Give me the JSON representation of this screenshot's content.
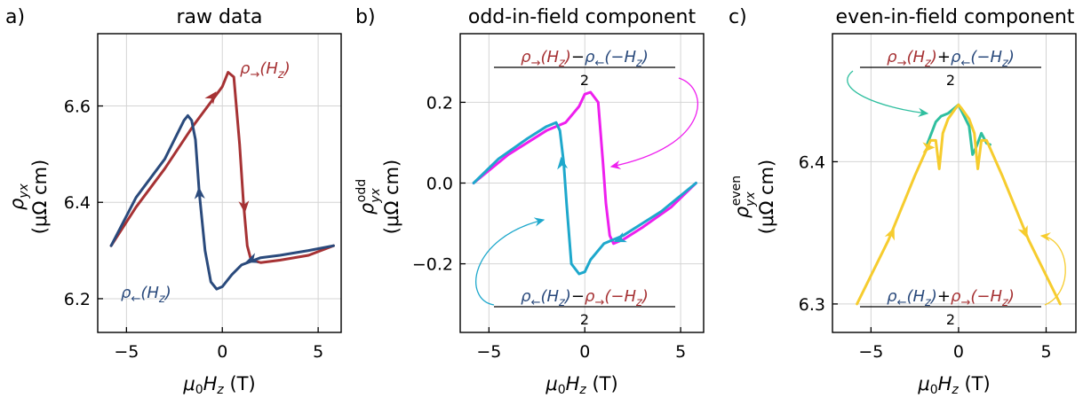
{
  "colors": {
    "red": "#a63234",
    "blue": "#2a4a7c",
    "magenta": "#ee1fee",
    "cyan": "#1ea8cc",
    "teal": "#2fbf9f",
    "yellow": "#f6cc2e"
  },
  "chart_data": [
    {
      "type": "line",
      "panel_letter": "a)",
      "title": "raw data",
      "xlabel": "μ₀H_z (T)",
      "ylabel_top": "ρ_yx",
      "ylabel_bottom": "(μΩ cm)",
      "xlim": [
        -6.5,
        6.2
      ],
      "ylim": [
        6.13,
        6.75
      ],
      "xticks": [
        -5,
        0,
        5
      ],
      "xtick_labels": [
        "−5",
        "0",
        "5"
      ],
      "yticks": [
        6.2,
        6.4,
        6.6
      ],
      "ytick_labels": [
        "6.2",
        "6.4",
        "6.6"
      ],
      "grid": true,
      "series": [
        {
          "name": "ρ→(H_z)",
          "color": "red",
          "x": [
            -5.8,
            -4.5,
            -3.0,
            -1.5,
            0.0,
            0.3,
            0.6,
            0.9,
            1.1,
            1.3,
            1.5,
            2.0,
            3.0,
            4.5,
            5.8
          ],
          "y": [
            6.31,
            6.39,
            6.47,
            6.56,
            6.64,
            6.67,
            6.66,
            6.52,
            6.4,
            6.31,
            6.28,
            6.275,
            6.28,
            6.29,
            6.31
          ],
          "arrows": [
            {
              "x": -0.5,
              "y": 6.62
            },
            {
              "x": 1.15,
              "y": 6.39
            }
          ]
        },
        {
          "name": "ρ←(H_z)",
          "color": "blue",
          "x": [
            5.8,
            4.5,
            3.0,
            2.0,
            1.0,
            0.5,
            0.0,
            -0.3,
            -0.6,
            -0.9,
            -1.2,
            -1.4,
            -1.6,
            -1.8,
            -2.0,
            -3.0,
            -4.5,
            -5.8
          ],
          "y": [
            6.31,
            6.3,
            6.29,
            6.285,
            6.27,
            6.25,
            6.225,
            6.22,
            6.235,
            6.3,
            6.42,
            6.53,
            6.57,
            6.58,
            6.57,
            6.49,
            6.41,
            6.31
          ],
          "arrows": [
            {
              "x": 1.5,
              "y": 6.28
            },
            {
              "x": -1.2,
              "y": 6.42
            }
          ]
        }
      ],
      "annotations": [
        "ρ→(H_z)",
        "ρ←(H_z)"
      ]
    },
    {
      "type": "line",
      "panel_letter": "b)",
      "title": "odd-in-field component",
      "xlabel": "μ₀H_z (T)",
      "ylabel_top": "ρ_yx^odd",
      "ylabel_bottom": "(μΩ cm)",
      "xlim": [
        -6.5,
        6.2
      ],
      "ylim": [
        -0.37,
        0.37
      ],
      "xticks": [
        -5,
        0,
        5
      ],
      "xtick_labels": [
        "−5",
        "0",
        "5"
      ],
      "yticks": [
        -0.2,
        0.0,
        0.2
      ],
      "ytick_labels": [
        "−0.2",
        "0.0",
        "0.2"
      ],
      "grid": true,
      "series": [
        {
          "name": "[ρ→(H_z) − ρ←(−H_z)]/2",
          "color": "magenta",
          "x": [
            -5.8,
            -4.0,
            -2.0,
            -1.0,
            -0.3,
            0.0,
            0.3,
            0.7,
            0.95,
            1.1,
            1.3,
            1.5,
            2.0,
            3.0,
            4.5,
            5.8
          ],
          "y": [
            0.0,
            0.07,
            0.13,
            0.15,
            0.19,
            0.22,
            0.225,
            0.2,
            0.05,
            -0.05,
            -0.13,
            -0.15,
            -0.14,
            -0.11,
            -0.06,
            0.0
          ]
        },
        {
          "name": "[ρ←(H_z) − ρ→(−H_z)]/2",
          "color": "cyan",
          "x": [
            5.8,
            4.0,
            2.0,
            1.0,
            0.3,
            0.0,
            -0.3,
            -0.7,
            -0.95,
            -1.1,
            -1.3,
            -1.5,
            -2.0,
            -3.0,
            -4.5,
            -5.8
          ],
          "y": [
            0.0,
            -0.07,
            -0.13,
            -0.15,
            -0.19,
            -0.22,
            -0.225,
            -0.2,
            -0.05,
            0.05,
            0.13,
            0.15,
            0.14,
            0.11,
            0.06,
            0.0
          ],
          "arrows": [
            {
              "x": -1.2,
              "y": 0.05
            },
            {
              "x": 1.8,
              "y": -0.14
            }
          ]
        }
      ],
      "annotations": [
        {
          "numerator": [
            "ρ→(H_z)",
            "−",
            "ρ←(−H_z)"
          ],
          "denominator": "2"
        },
        {
          "numerator": [
            "ρ←(H_z)",
            "−",
            "ρ→(−H_z)"
          ],
          "denominator": "2"
        }
      ]
    },
    {
      "type": "line",
      "panel_letter": "c)",
      "title": "even-in-field component",
      "xlabel": "μ₀H_z (T)",
      "ylabel_top": "ρ_yx^even",
      "ylabel_bottom": "(μΩ cm)",
      "xlim": [
        -7.2,
        6.7
      ],
      "ylim": [
        6.28,
        6.49
      ],
      "xticks": [
        -5,
        0,
        5
      ],
      "xtick_labels": [
        "−5",
        "0",
        "5"
      ],
      "yticks": [
        6.3,
        6.4
      ],
      "ytick_labels": [
        "6.3",
        "6.4"
      ],
      "grid": true,
      "series": [
        {
          "name": "[ρ→(H_z) + ρ←(−H_z)]/2",
          "color": "teal",
          "x": [
            -1.8,
            -1.3,
            -1.0,
            -0.6,
            -0.2,
            0.0,
            0.2,
            0.6,
            0.8,
            1.0,
            1.3,
            1.6,
            1.8
          ],
          "y": [
            6.412,
            6.428,
            6.432,
            6.434,
            6.438,
            6.44,
            6.435,
            6.425,
            6.405,
            6.41,
            6.42,
            6.413,
            6.412
          ]
        },
        {
          "name": "[ρ←(H_z) + ρ→(−H_z)]/2",
          "color": "yellow",
          "x": [
            -5.8,
            -4.0,
            -2.5,
            -1.6,
            -1.3,
            -1.1,
            -0.9,
            -0.6,
            -0.2,
            0.0,
            0.2,
            0.6,
            0.9,
            1.1,
            1.3,
            1.6,
            2.5,
            4.0,
            5.8
          ],
          "y": [
            6.3,
            6.345,
            6.39,
            6.415,
            6.415,
            6.395,
            6.42,
            6.43,
            6.437,
            6.44,
            6.437,
            6.43,
            6.42,
            6.395,
            6.415,
            6.415,
            6.39,
            6.345,
            6.3
          ],
          "arrows": [
            {
              "x": -3.8,
              "y": 6.35
            },
            {
              "x": 3.8,
              "y": 6.35
            },
            {
              "x": -1.7,
              "y": 6.41
            }
          ]
        }
      ],
      "annotations": [
        {
          "numerator": [
            "ρ→(H_z)",
            "+",
            "ρ←(−H_z)"
          ],
          "denominator": "2"
        },
        {
          "numerator": [
            "ρ←(H_z)",
            "+",
            "ρ→(−H_z)"
          ],
          "denominator": "2"
        }
      ]
    }
  ]
}
